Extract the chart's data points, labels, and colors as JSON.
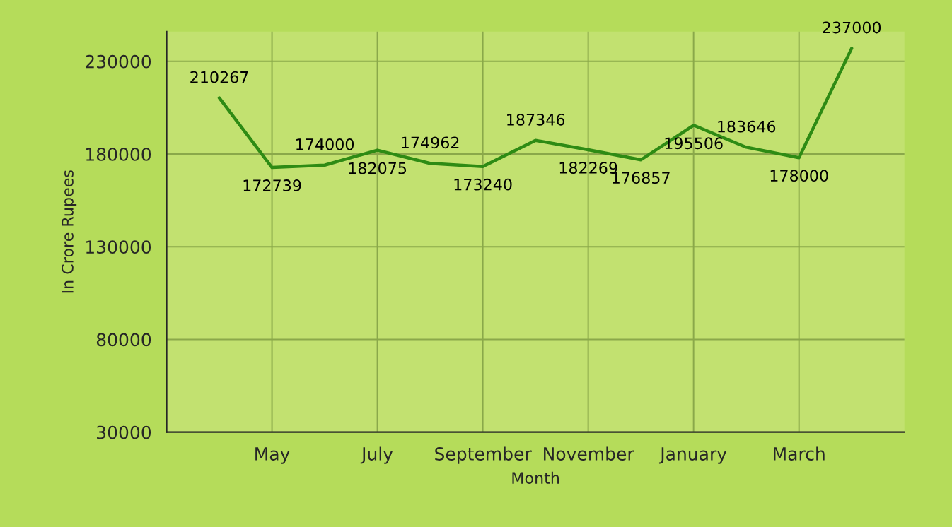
{
  "chart_data": {
    "type": "line",
    "xlabel": "Month",
    "ylabel": "In Crore Rupees",
    "categories": [
      null,
      "May",
      null,
      "July",
      null,
      "September",
      null,
      "November",
      null,
      "January",
      null,
      "March",
      null
    ],
    "series": [
      {
        "color": "#2e8b14",
        "values": [
          210267,
          172739,
          174000,
          182075,
          174962,
          173240,
          187346,
          182269,
          176857,
          195506,
          183646,
          178000,
          237000
        ]
      }
    ],
    "ylim": [
      30000,
      246000
    ],
    "yticks": [
      30000,
      80000,
      130000,
      180000,
      230000
    ],
    "grid": true,
    "data_labels": true,
    "marker": "none",
    "line_style": "solid"
  }
}
